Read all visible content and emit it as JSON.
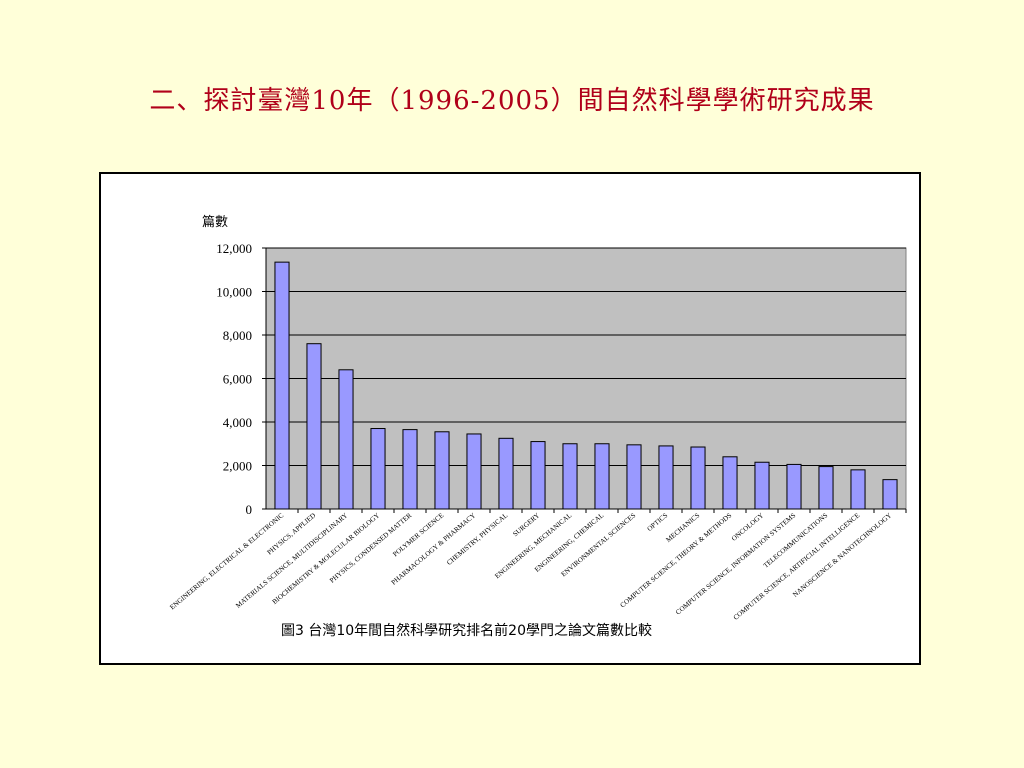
{
  "slide": {
    "title": "二、探討臺灣10年（1996-2005）間自然科學學術研究成果"
  },
  "chart_data": {
    "type": "bar",
    "title": "",
    "caption": "圖3  台灣10年間自然科學研究排名前20學門之論文篇數比較",
    "ylabel": "篇數",
    "xlabel": "",
    "ylim": [
      0,
      12000
    ],
    "yticks": [
      "0",
      "2,000",
      "4,000",
      "6,000",
      "8,000",
      "10,000",
      "12,000"
    ],
    "grid": true,
    "colors": {
      "bar": "#9999FF",
      "plot_bg": "#C0C0C0",
      "frame": "#000000"
    },
    "categories": [
      "ENGINEERING, ELECTRICAL & ELECTRONIC",
      "PHYSICS, APPLIED",
      "MATERIALS SCIENCE, MULTIDISCIPLINARY",
      "BIOCHEMISTRY & MOLECULAR BIOLOGY",
      "PHYSICS, CONDENSED MATTER",
      "POLYMER SCIENCE",
      "PHARMACOLOGY & PHARMACY",
      "CHEMISTRY, PHYSICAL",
      "SURGERY",
      "ENGINEERING, MECHANICAL",
      "ENGINEERING, CHEMICAL",
      "ENVIRONMENTAL SCIENCES",
      "OPTICS",
      "MECHANICS",
      "COMPUTER SCIENCE, THEORY & METHODS",
      "ONCOLOGY",
      "COMPUTER SCIENCE, INFORMATION SYSTEMS",
      "TELECOMMUNICATIONS",
      "COMPUTER SCIENCE, ARTIFICIAL INTELLIGENCE",
      "NANOSCIENCE & NANOTECHNOLOGY"
    ],
    "values": [
      11350,
      7600,
      6400,
      3700,
      3650,
      3550,
      3450,
      3250,
      3100,
      3000,
      3000,
      2950,
      2900,
      2850,
      2400,
      2150,
      2050,
      1950,
      1800,
      1350
    ]
  }
}
